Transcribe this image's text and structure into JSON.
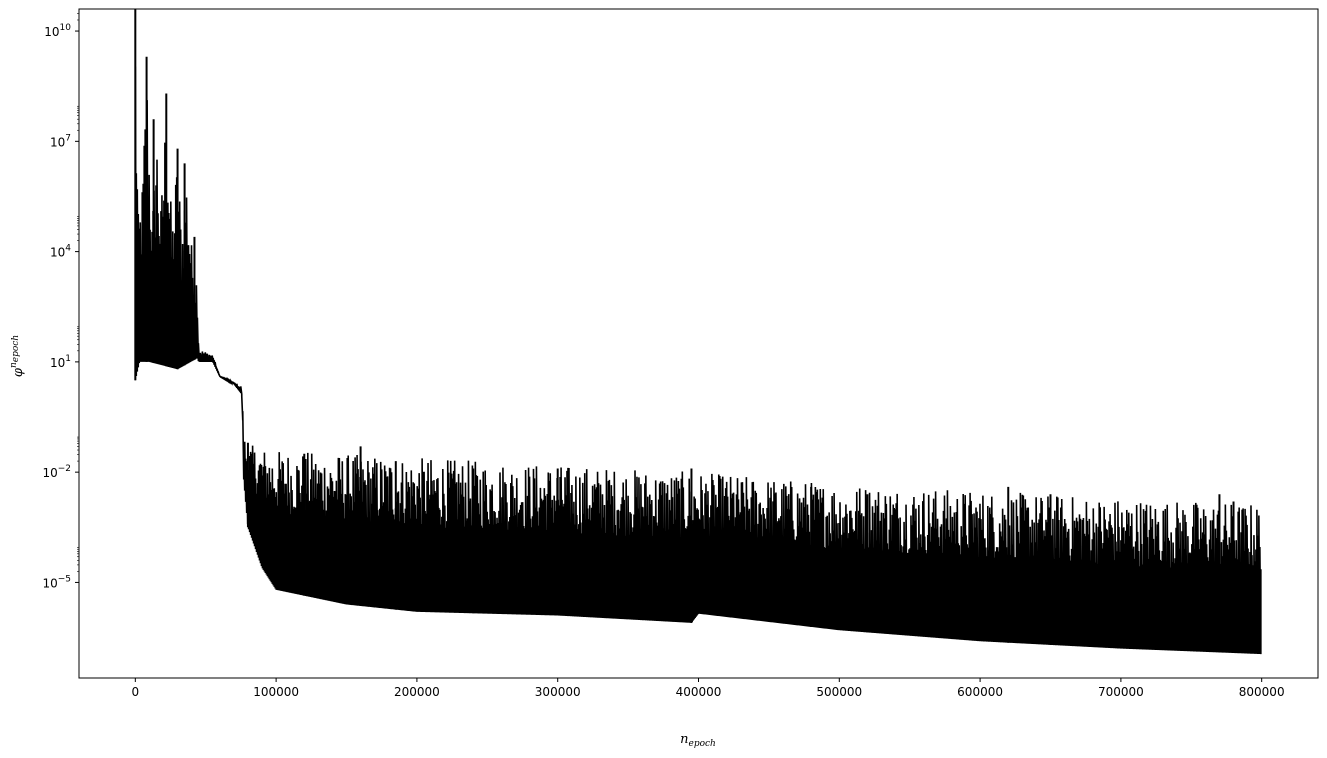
{
  "chart_data": {
    "type": "line",
    "xlabel": "n",
    "xlabel_subscript": "epoch",
    "ylabel": "φ",
    "ylabel_superscript": "n",
    "ylabel_superscript_subscript": "epoch",
    "yscale": "log",
    "xlim": [
      -40000,
      840000
    ],
    "ylim_exp": [
      -7.6,
      10.6
    ],
    "x_ticks": [
      {
        "value": 0,
        "label": "0"
      },
      {
        "value": 100000,
        "label": "100000"
      },
      {
        "value": 200000,
        "label": "200000"
      },
      {
        "value": 300000,
        "label": "300000"
      },
      {
        "value": 400000,
        "label": "400000"
      },
      {
        "value": 500000,
        "label": "500000"
      },
      {
        "value": 600000,
        "label": "600000"
      },
      {
        "value": 700000,
        "label": "700000"
      },
      {
        "value": 800000,
        "label": "800000"
      }
    ],
    "y_ticks": [
      {
        "exp": 10,
        "base": "10",
        "sup": "10"
      },
      {
        "exp": 7,
        "base": "10",
        "sup": "7"
      },
      {
        "exp": 4,
        "base": "10",
        "sup": "4"
      },
      {
        "exp": 1,
        "base": "10",
        "sup": "1"
      },
      {
        "exp": -2,
        "base": "10",
        "sup": "−2"
      },
      {
        "exp": -5,
        "base": "10",
        "sup": "−5"
      }
    ],
    "series": [
      {
        "color": "#000000",
        "upper_envelope": [
          [
            0,
            10.6
          ],
          [
            2000,
            5.0
          ],
          [
            5000,
            5.9
          ],
          [
            8000,
            9.3
          ],
          [
            12000,
            4.8
          ],
          [
            15000,
            7.6
          ],
          [
            18000,
            5.1
          ],
          [
            22000,
            8.3
          ],
          [
            26000,
            4.7
          ],
          [
            30000,
            6.8
          ],
          [
            33000,
            4.6
          ],
          [
            36000,
            6.4
          ],
          [
            40000,
            4.2
          ],
          [
            44000,
            3.3
          ],
          [
            45000,
            1.35
          ],
          [
            55000,
            1.2
          ],
          [
            60000,
            0.6
          ],
          [
            70000,
            0.45
          ],
          [
            75000,
            0.35
          ],
          [
            78000,
            -1.2
          ],
          [
            85000,
            -1.3
          ],
          [
            100000,
            -1.4
          ],
          [
            150000,
            -1.5
          ],
          [
            200000,
            -1.6
          ],
          [
            300000,
            -1.8
          ],
          [
            400000,
            -2.0
          ],
          [
            500000,
            -2.3
          ],
          [
            600000,
            -2.5
          ],
          [
            700000,
            -2.7
          ],
          [
            800000,
            -2.85
          ]
        ],
        "lower_envelope": [
          [
            0,
            0.5
          ],
          [
            3000,
            1.0
          ],
          [
            10000,
            1.0
          ],
          [
            20000,
            0.9
          ],
          [
            30000,
            0.8
          ],
          [
            44000,
            1.1
          ],
          [
            45000,
            1.0
          ],
          [
            55000,
            1.0
          ],
          [
            60000,
            0.6
          ],
          [
            70000,
            0.4
          ],
          [
            76000,
            0.1
          ],
          [
            77000,
            -2.2
          ],
          [
            80000,
            -3.5
          ],
          [
            90000,
            -4.6
          ],
          [
            100000,
            -5.2
          ],
          [
            150000,
            -5.6
          ],
          [
            200000,
            -5.8
          ],
          [
            300000,
            -5.9
          ],
          [
            395000,
            -6.1
          ],
          [
            400000,
            -5.85
          ],
          [
            500000,
            -6.3
          ],
          [
            600000,
            -6.6
          ],
          [
            700000,
            -6.8
          ],
          [
            800000,
            -6.95
          ]
        ],
        "spikes": [
          [
            0,
            10.6
          ],
          [
            8000,
            9.3
          ],
          [
            22000,
            8.3
          ],
          [
            13000,
            7.6
          ],
          [
            30000,
            6.8
          ],
          [
            35000,
            6.4
          ],
          [
            42000,
            4.4
          ],
          [
            80000,
            -1.2
          ],
          [
            120000,
            -1.5
          ],
          [
            160000,
            -1.3
          ],
          [
            185000,
            -1.7
          ],
          [
            240000,
            -1.9
          ],
          [
            300000,
            -1.9
          ],
          [
            395000,
            -1.9
          ],
          [
            480000,
            -2.4
          ],
          [
            520000,
            -2.6
          ],
          [
            620000,
            -2.4
          ],
          [
            650000,
            -2.6
          ],
          [
            770000,
            -2.6
          ],
          [
            780000,
            -2.8
          ]
        ]
      }
    ]
  }
}
